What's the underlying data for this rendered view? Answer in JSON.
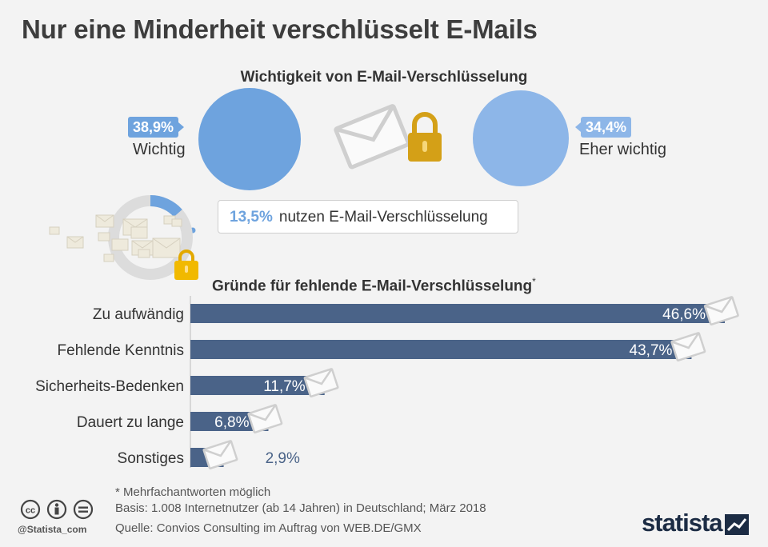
{
  "title": "Nur eine Minderheit verschlüsselt E-Mails",
  "importance": {
    "subtitle": "Wichtigkeit von E-Mail-Verschlüsselung",
    "items": [
      {
        "label": "Wichtig",
        "value": "38,9%",
        "color": "#6ea3de"
      },
      {
        "label": "Eher wichtig",
        "value": "34,4%",
        "color": "#8db6e8"
      }
    ]
  },
  "usage": {
    "value": "13,5%",
    "text": "nutzen E-Mail-Verschlüsselung",
    "fraction": 0.135
  },
  "chart_data": {
    "type": "bar",
    "orientation": "horizontal",
    "title": "Gründe für fehlende E-Mail-Verschlüsselung",
    "title_suffix": "*",
    "categories": [
      "Zu aufwändig",
      "Fehlende Kenntnis",
      "Sicherheits-Bedenken",
      "Dauert zu lange",
      "Sonstiges"
    ],
    "values": [
      46.6,
      43.7,
      11.7,
      6.8,
      2.9
    ],
    "value_labels": [
      "46,6%",
      "43,7%",
      "11,7%",
      "6,8%",
      "2,9%"
    ],
    "xlim": [
      0,
      46.6
    ],
    "bar_color": "#4a6388"
  },
  "footer": {
    "note": "* Mehrfachantworten möglich",
    "basis": "Basis: 1.008 Internetnutzer (ab 14 Jahren) in Deutschland; März 2018",
    "source": "Quelle: Convios Consulting im Auftrag von WEB.DE/GMX",
    "handle": "@Statista_com",
    "brand": "statista"
  }
}
